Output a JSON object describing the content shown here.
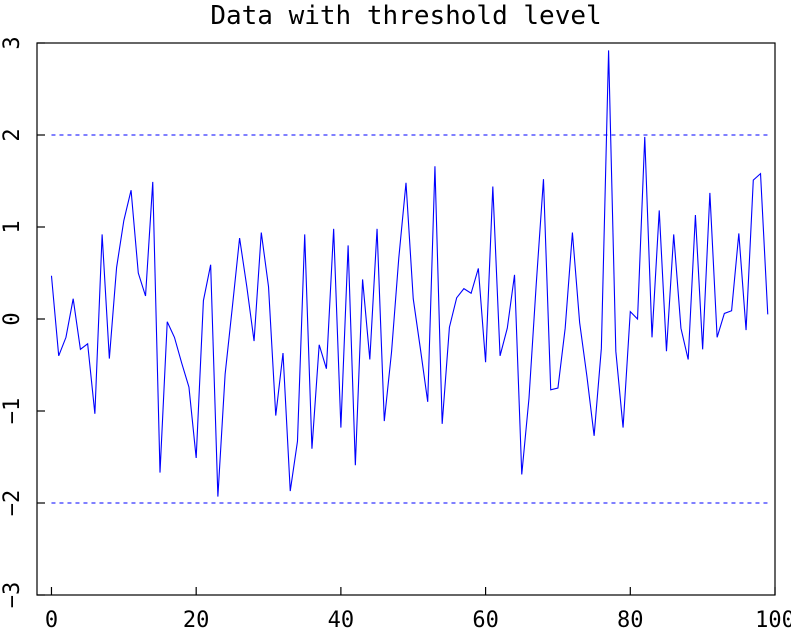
{
  "chart_data": {
    "type": "line",
    "title": "Data with threshold level",
    "xlabel": "",
    "ylabel": "",
    "xlim": [
      -2,
      100
    ],
    "ylim": [
      -3,
      3
    ],
    "x_ticks": [
      0,
      20,
      40,
      60,
      80,
      100
    ],
    "x_tick_labels": [
      "0",
      "20",
      "40",
      "60",
      "80",
      "100"
    ],
    "y_ticks": [
      -3,
      -2,
      -1,
      0,
      1,
      2,
      3
    ],
    "y_tick_labels": [
      "−3",
      "−2",
      "−1",
      "0",
      "1",
      "2",
      "3"
    ],
    "grid": false,
    "series": [
      {
        "color": "#0000ff",
        "style": "solid",
        "x_start": 0,
        "x_step": 1,
        "values": [
          0.47,
          -0.4,
          -0.2,
          0.22,
          -0.33,
          -0.27,
          -1.03,
          0.92,
          -0.43,
          0.56,
          1.07,
          1.4,
          0.5,
          0.25,
          1.49,
          -1.67,
          -0.03,
          -0.2,
          -0.48,
          -0.74,
          -1.51,
          0.2,
          0.59,
          -1.93,
          -0.6,
          0.13,
          0.88,
          0.35,
          -0.24,
          0.94,
          0.35,
          -1.05,
          -0.37,
          -1.87,
          -1.33,
          0.92,
          -1.41,
          -0.28,
          -0.54,
          0.98,
          -1.18,
          0.8,
          -1.59,
          0.43,
          -0.44,
          0.98,
          -1.11,
          -0.36,
          0.66,
          1.48,
          0.22,
          -0.33,
          -0.9,
          1.66,
          -1.14,
          -0.09,
          0.23,
          0.33,
          0.28,
          0.55,
          -0.47,
          1.44,
          -0.4,
          -0.1,
          0.48,
          -1.69,
          -0.86,
          0.38,
          1.52,
          -0.77,
          -0.75,
          -0.1,
          0.94,
          -0.04,
          -0.62,
          -1.27,
          -0.32,
          2.92,
          -0.35,
          -1.18,
          0.08,
          0.0,
          1.98,
          -0.2,
          1.18,
          -0.35,
          0.92,
          -0.1,
          -0.44,
          1.13,
          -0.33,
          1.37,
          -0.2,
          0.06,
          0.09,
          0.93,
          -0.12,
          1.51,
          1.58,
          0.05
        ]
      }
    ],
    "threshold_lines": [
      {
        "value": 2,
        "color": "#0000ff",
        "style": "dashed"
      },
      {
        "value": -2,
        "color": "#0000ff",
        "style": "dashed"
      }
    ]
  }
}
